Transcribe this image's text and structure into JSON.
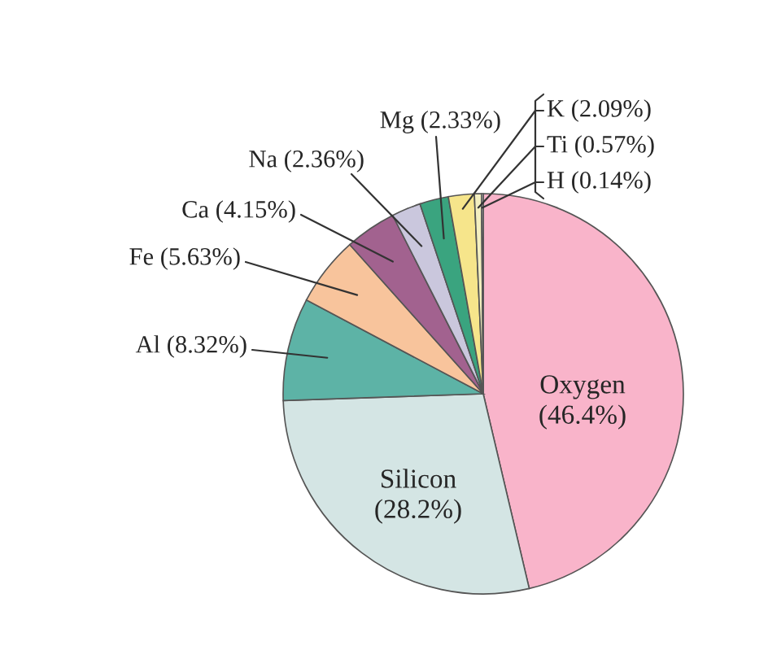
{
  "chart_data": {
    "type": "pie",
    "categories": [
      "Oxygen",
      "Silicon",
      "Al",
      "Fe",
      "Ca",
      "Na",
      "Mg",
      "K",
      "Ti",
      "H"
    ],
    "values": [
      46.4,
      28.2,
      8.32,
      5.63,
      4.15,
      2.36,
      2.33,
      2.09,
      0.57,
      0.14
    ],
    "value_labels": [
      "(46.4%)",
      "(28.2%)",
      "(8.32%)",
      "(5.63%)",
      "(4.15%)",
      "(2.36%)",
      "(2.33%)",
      "(2.09%)",
      "(0.57%)",
      "(0.14%)"
    ],
    "colors": [
      "#f9b4ca",
      "#d4e5e4",
      "#5db3a6",
      "#f8c49c",
      "#a2628f",
      "#cac7dd",
      "#3aa47f",
      "#f6e58b",
      "#f3efc0",
      "#ffffff"
    ]
  }
}
